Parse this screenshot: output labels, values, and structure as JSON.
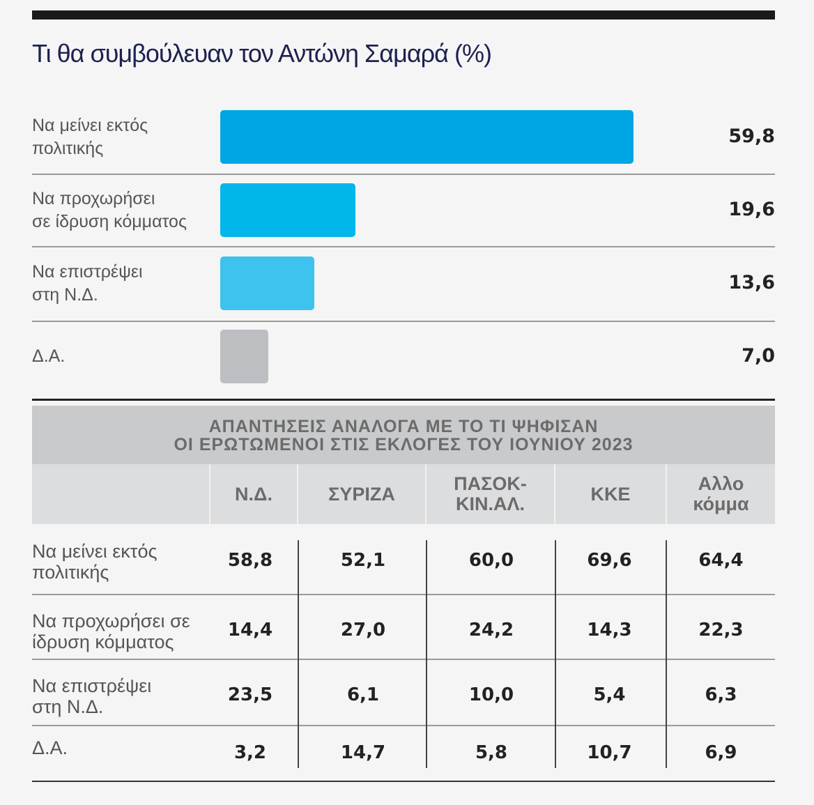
{
  "chart_data": {
    "type": "bar",
    "title": "Τι θα συμβούλευαν τον Αντώνη Σαμαρά (%)",
    "categories": [
      "Να μείνει εκτός πολιτικής",
      "Να προχωρήσει σε ίδρυση κόμματος",
      "Να επιστρέψει στη Ν.Δ.",
      "Δ.Α."
    ],
    "category_lines": [
      [
        "Να μείνει εκτός",
        "πολιτικής"
      ],
      [
        "Να προχωρήσει",
        "σε ίδρυση κόμματος"
      ],
      [
        "Να επιστρέψει",
        "στη Ν.Δ."
      ],
      [
        "Δ.Α.",
        ""
      ]
    ],
    "values": [
      59.8,
      19.6,
      13.6,
      7.0
    ],
    "value_labels": [
      "59,8",
      "19,6",
      "13,6",
      "7,0"
    ],
    "colors": [
      "#00a6e4",
      "#00b6ea",
      "#3ec2ee",
      "#bdbec2"
    ],
    "orientation": "horizontal"
  },
  "table": {
    "title_lines": [
      "ΑΠΑΝΤΗΣΕΙΣ ΑΝΑΛΟΓΑ ΜΕ ΤΟ ΤΙ ΨΗΦΙΣΑΝ",
      "ΟΙ ΕΡΩΤΩΜΕΝΟΙ ΣΤΙΣ ΕΚΛΟΓΕΣ ΤΟΥ ΙΟΥΝΙΟΥ 2023"
    ],
    "columns": [
      [
        "Ν.Δ.",
        ""
      ],
      [
        "ΣΥΡΙΖΑ",
        ""
      ],
      [
        "ΠΑΣΟΚ-",
        "ΚΙΝ.ΑΛ."
      ],
      [
        "ΚΚΕ",
        ""
      ],
      [
        "Αλλο",
        "κόμμα"
      ]
    ],
    "rows": [
      {
        "label": [
          "Να μείνει εκτός",
          "πολιτικής"
        ],
        "values": [
          "58,8",
          "52,1",
          "60,0",
          "69,6",
          "64,4"
        ]
      },
      {
        "label": [
          "Να προχωρήσει σε",
          "ίδρυση κόμματος"
        ],
        "values": [
          "14,4",
          "27,0",
          "24,2",
          "14,3",
          "22,3"
        ]
      },
      {
        "label": [
          "Να επιστρέψει",
          "στη Ν.Δ."
        ],
        "values": [
          "23,5",
          "6,1",
          "10,0",
          "5,4",
          "6,3"
        ]
      },
      {
        "label": [
          "Δ.Α.",
          ""
        ],
        "values": [
          "3,2",
          "14,7",
          "5,8",
          "10,7",
          "6,9"
        ]
      }
    ]
  }
}
